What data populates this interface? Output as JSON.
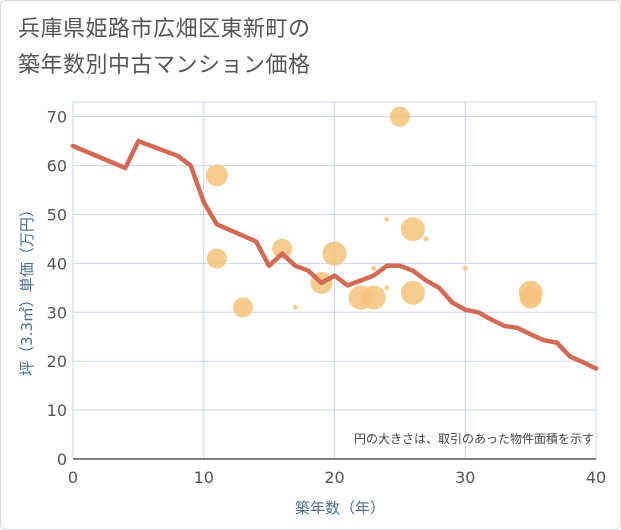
{
  "title": {
    "line1": "兵庫県姫路市広畑区東新町の",
    "line2": "築年数別中古マンション価格"
  },
  "colors": {
    "line": "#d26a55",
    "bubble": "#f5c27a",
    "axis_text": "#555555",
    "grid": "#c9d7e6",
    "axis_label": "#4a6f8f"
  },
  "chart_data": {
    "type": "scatter+line",
    "xlabel": "築年数（年）",
    "ylabel": "坪（3.3㎡）単価（万円）",
    "xlim": [
      0,
      40
    ],
    "ylim": [
      0,
      73
    ],
    "x_ticks": [
      0,
      10,
      20,
      30,
      40
    ],
    "y_ticks": [
      0,
      10,
      20,
      30,
      40,
      50,
      60,
      70
    ],
    "note": "円の大きさは、取引のあった物件面積を示す",
    "trend_line": {
      "x": [
        0,
        4,
        5,
        8,
        9,
        10,
        11,
        14,
        15,
        16,
        17,
        18,
        19,
        20,
        21,
        22,
        23,
        24,
        25,
        26,
        27,
        28,
        29,
        30,
        31,
        32,
        33,
        34,
        35,
        36,
        37,
        38,
        39,
        40
      ],
      "y": [
        64,
        59.5,
        65,
        62,
        60,
        52.5,
        48,
        44.5,
        39.5,
        42,
        39.5,
        38.5,
        36,
        37.5,
        35.5,
        36.5,
        37.5,
        39.5,
        39.5,
        38.5,
        36.5,
        35,
        32,
        30.5,
        30,
        28.5,
        27.2,
        26.8,
        25.5,
        24.3,
        23.8,
        21,
        19.8,
        18.5
      ]
    },
    "bubbles": [
      {
        "x": 11,
        "y": 58,
        "r": 11
      },
      {
        "x": 11,
        "y": 41,
        "r": 10
      },
      {
        "x": 13,
        "y": 31,
        "r": 10
      },
      {
        "x": 16,
        "y": 43,
        "r": 10
      },
      {
        "x": 17,
        "y": 31,
        "r": 2.5
      },
      {
        "x": 19,
        "y": 36,
        "r": 11
      },
      {
        "x": 20,
        "y": 42,
        "r": 12
      },
      {
        "x": 22,
        "y": 33,
        "r": 12
      },
      {
        "x": 23,
        "y": 33,
        "r": 12
      },
      {
        "x": 23,
        "y": 39,
        "r": 2.5
      },
      {
        "x": 24,
        "y": 49,
        "r": 2.5
      },
      {
        "x": 24,
        "y": 35,
        "r": 2.5
      },
      {
        "x": 25,
        "y": 70,
        "r": 10
      },
      {
        "x": 26,
        "y": 47,
        "r": 12
      },
      {
        "x": 26,
        "y": 34,
        "r": 12
      },
      {
        "x": 27,
        "y": 45,
        "r": 2.5
      },
      {
        "x": 30,
        "y": 39,
        "r": 2.5
      },
      {
        "x": 35,
        "y": 33,
        "r": 11
      },
      {
        "x": 35,
        "y": 34,
        "r": 12
      }
    ]
  }
}
